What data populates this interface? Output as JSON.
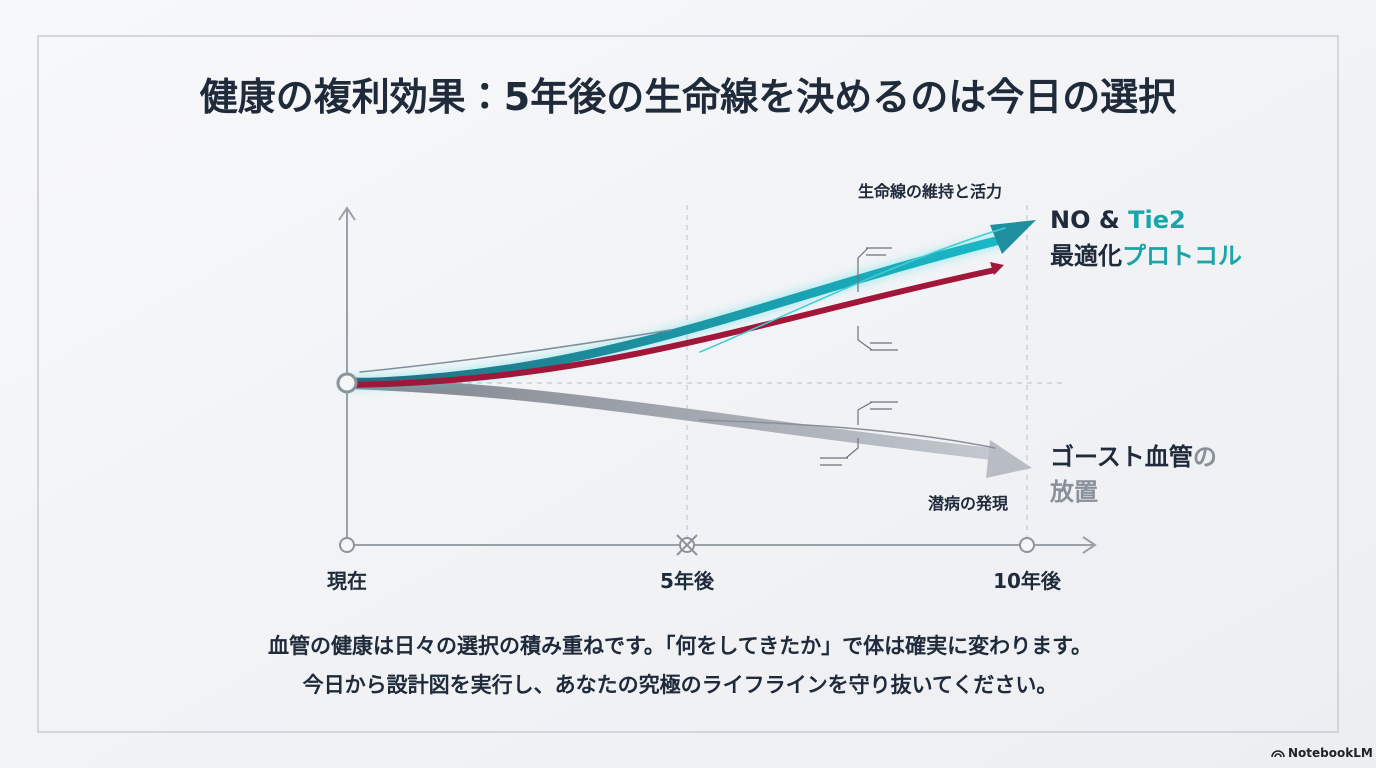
{
  "title": "健康の複利効果：5年後の生命線を決めるのは今日の選択",
  "axis_labels": [
    "現在",
    "5年後",
    "10年後"
  ],
  "annotations": {
    "top": "生命線の維持と活力",
    "bottom": "潜病の発現"
  },
  "outcomes": {
    "positive": {
      "line1": [
        "NO & ",
        "Tie2"
      ],
      "line2": [
        "最適化",
        "プロトコル"
      ]
    },
    "negative": {
      "line1": [
        "ゴースト血管",
        "の"
      ],
      "line2": "放置"
    }
  },
  "caption": [
    "血管の健康は日々の選択の積み重ねです。「何をしてきたか」で体は確実に変わります。",
    "今日から設計図を実行し、あなたの究極のライフラインを守り抜いてください。"
  ],
  "footer": "NotebookLM"
}
